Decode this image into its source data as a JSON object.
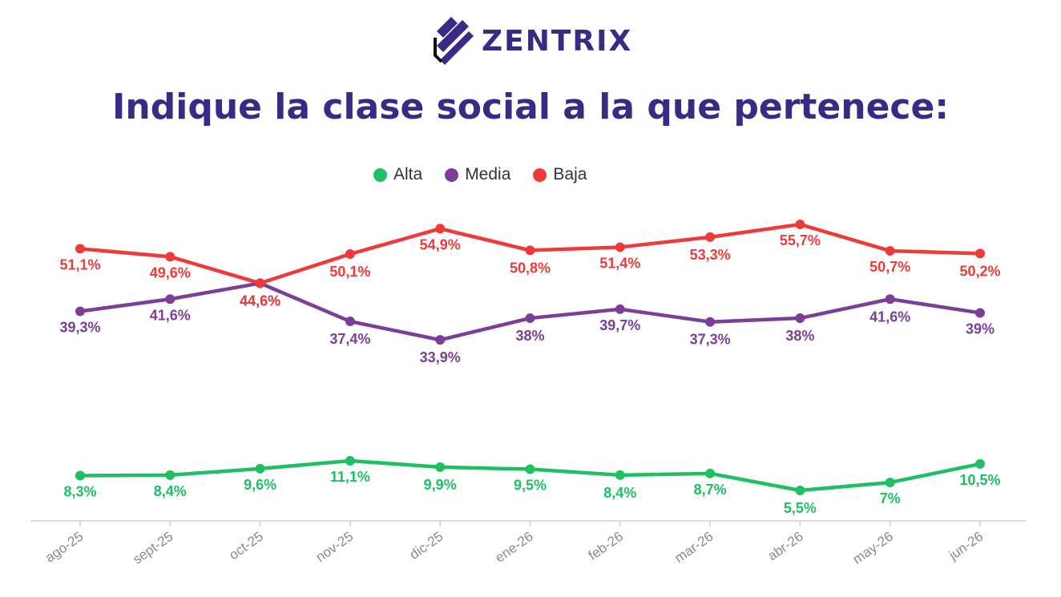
{
  "brand": {
    "name": "ZENTRIX",
    "color": "#3a2a86"
  },
  "chart_data": {
    "type": "line",
    "title": "Indique la clase social a la que pertenece:",
    "categories": [
      "ago-25",
      "sept-25",
      "oct-25",
      "nov-25",
      "dic-25",
      "ene-26",
      "feb-26",
      "mar-26",
      "abr-26",
      "may-26",
      "jun-26"
    ],
    "series": [
      {
        "name": "Alta",
        "color": "#1ec063",
        "values": [
          8.3,
          8.4,
          9.6,
          11.1,
          9.9,
          9.5,
          8.4,
          8.7,
          5.5,
          7,
          10.5
        ],
        "labels": [
          "8,3%",
          "8,4%",
          "9,6%",
          "11,1%",
          "9,9%",
          "9,5%",
          "8,4%",
          "8,7%",
          "5,5%",
          "7%",
          "10,5%"
        ]
      },
      {
        "name": "Media",
        "color": "#7b3f98",
        "values": [
          39.3,
          41.6,
          44.6,
          37.4,
          33.9,
          38,
          39.7,
          37.3,
          38,
          41.6,
          39
        ],
        "labels": [
          "39,3%",
          "41,6%",
          "44,6%",
          "37,4%",
          "33,9%",
          "38%",
          "39,7%",
          "37,3%",
          "38%",
          "41,6%",
          "39%"
        ]
      },
      {
        "name": "Baja",
        "color": "#f03a3a",
        "values": [
          51.1,
          49.6,
          44.6,
          50.1,
          54.9,
          50.8,
          51.4,
          53.3,
          55.7,
          50.7,
          50.2
        ],
        "labels": [
          "51,1%",
          "49,6%",
          "44,6%",
          "50,1%",
          "54,9%",
          "50,8%",
          "51,4%",
          "53,3%",
          "55,7%",
          "50,7%",
          "50,2%"
        ]
      }
    ],
    "legend": "top-center",
    "grid": false
  }
}
